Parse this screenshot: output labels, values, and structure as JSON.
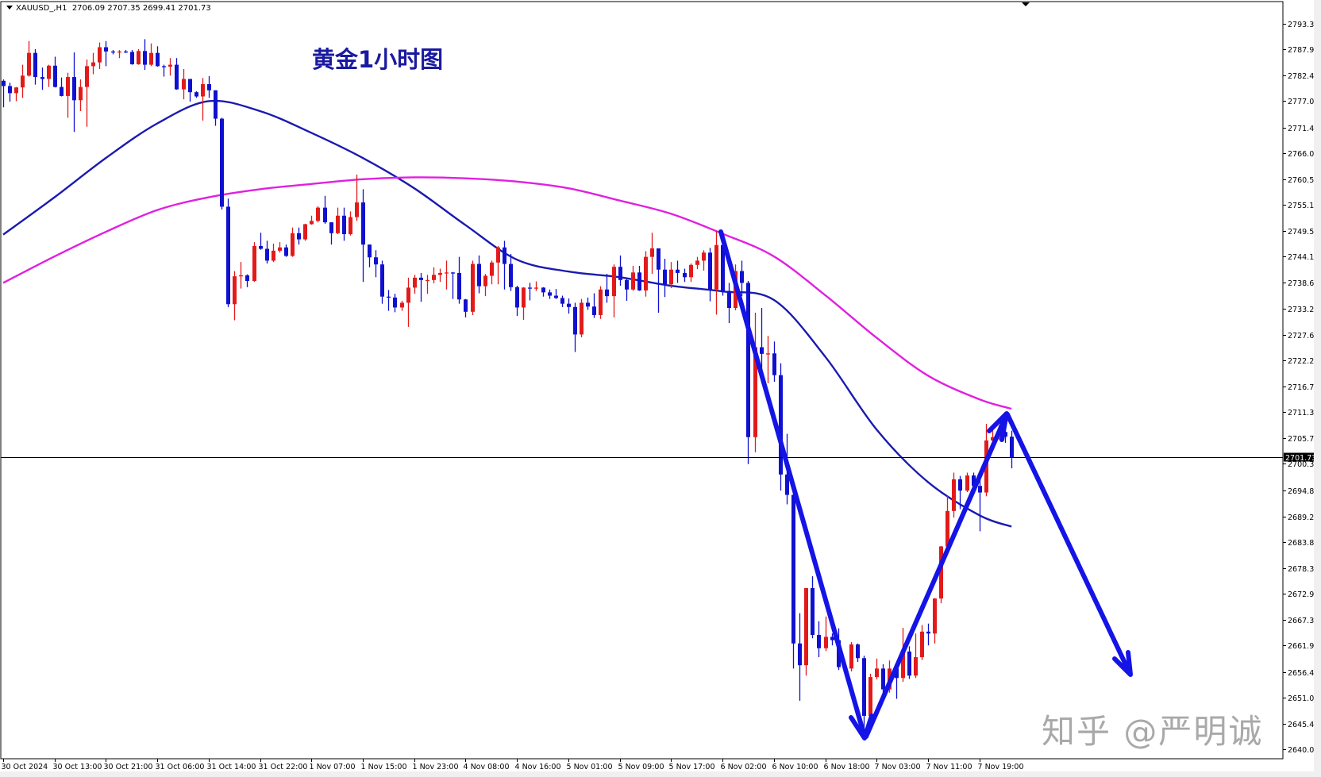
{
  "header": {
    "symbol": "XAUUSD_,H1",
    "ohlc_text": "2706.09 2707.35 2699.41 2701.73"
  },
  "title": "黄金1小时图",
  "watermark": "知乎 @严明诚",
  "colors": {
    "bull_candle": "#e31a1a",
    "bear_candle": "#1010d0",
    "ma_fast": "#1a1ab0",
    "ma_slow": "#e020e0",
    "annotation_arrows": "#1414e6",
    "current_price_line": "#000000"
  },
  "price_axis": {
    "ticks": [
      "2793.35",
      "2787.95",
      "2782.40",
      "2777.00",
      "2771.45",
      "2766.05",
      "2760.50",
      "2755.10",
      "2749.55",
      "2744.15",
      "2738.60",
      "2733.20",
      "2727.65",
      "2722.25",
      "2716.70",
      "2711.30",
      "2705.75",
      "2700.35",
      "2694.80",
      "2689.25",
      "2683.85",
      "2678.30",
      "2672.90",
      "2667.35",
      "2661.95",
      "2656.40",
      "2651.00",
      "2645.45",
      "2640.05"
    ],
    "current_price": "2701.73"
  },
  "time_axis": {
    "labels": [
      "30 Oct 2024",
      "30 Oct 13:00",
      "30 Oct 21:00",
      "31 Oct 06:00",
      "31 Oct 14:00",
      "31 Oct 22:00",
      "1 Nov 07:00",
      "1 Nov 15:00",
      "1 Nov 23:00",
      "4 Nov 08:00",
      "4 Nov 16:00",
      "5 Nov 01:00",
      "5 Nov 09:00",
      "5 Nov 17:00",
      "6 Nov 02:00",
      "6 Nov 10:00",
      "6 Nov 18:00",
      "7 Nov 03:00",
      "7 Nov 11:00",
      "7 Nov 19:00"
    ],
    "bars_per_label": 8
  },
  "chart_data": {
    "type": "candlestick",
    "timeframe": "H1",
    "ylim": [
      2640.05,
      2793.35
    ],
    "grid": false,
    "candles_ohlc": [
      [
        2781.3,
        2781.6,
        2775.7,
        2780.2
      ],
      [
        2780.2,
        2780.9,
        2776.9,
        2778.7
      ],
      [
        2778.7,
        2780.0,
        2777.0,
        2779.9
      ],
      [
        2779.9,
        2784.7,
        2777.7,
        2782.4
      ],
      [
        2782.4,
        2789.7,
        2782.2,
        2787.2
      ],
      [
        2787.2,
        2788.0,
        2780.5,
        2782.1
      ],
      [
        2782.1,
        2784.1,
        2779.4,
        2781.7
      ],
      [
        2781.7,
        2784.7,
        2780.0,
        2784.5
      ],
      [
        2784.5,
        2786.4,
        2779.9,
        2780.0
      ],
      [
        2780.0,
        2782.0,
        2778.0,
        2778.1
      ],
      [
        2778.1,
        2783.0,
        2773.5,
        2782.1
      ],
      [
        2782.1,
        2787.3,
        2770.5,
        2777.2
      ],
      [
        2777.2,
        2781.6,
        2774.9,
        2780.0
      ],
      [
        2780.0,
        2785.8,
        2771.6,
        2784.4
      ],
      [
        2784.4,
        2787.2,
        2782.7,
        2785.2
      ],
      [
        2785.2,
        2789.4,
        2783.8,
        2788.4
      ],
      [
        2788.4,
        2789.7,
        2784.4,
        2787.5
      ],
      [
        2787.5,
        2787.8,
        2786.9,
        2787.3
      ],
      [
        2787.3,
        2787.8,
        2786.1,
        2787.5
      ],
      [
        2787.5,
        2787.8,
        2787.2,
        2787.4
      ],
      [
        2787.4,
        2787.8,
        2784.7,
        2784.8
      ],
      [
        2784.8,
        2788.0,
        2784.7,
        2787.6
      ],
      [
        2787.6,
        2790.1,
        2783.6,
        2784.7
      ],
      [
        2784.7,
        2789.2,
        2784.4,
        2787.2
      ],
      [
        2787.2,
        2788.6,
        2784.3,
        2784.4
      ],
      [
        2784.4,
        2784.7,
        2782.2,
        2784.3
      ],
      [
        2784.3,
        2786.1,
        2782.4,
        2784.7
      ],
      [
        2784.7,
        2786.1,
        2779.4,
        2779.5
      ],
      [
        2779.5,
        2783.8,
        2777.4,
        2781.7
      ],
      [
        2781.7,
        2781.7,
        2776.9,
        2778.9
      ],
      [
        2778.9,
        2779.1,
        2777.7,
        2778.0
      ],
      [
        2778.0,
        2781.9,
        2772.9,
        2780.6
      ],
      [
        2780.6,
        2782.3,
        2777.7,
        2779.3
      ],
      [
        2779.3,
        2779.3,
        2771.8,
        2773.3
      ],
      [
        2773.3,
        2773.5,
        2754.1,
        2754.7
      ],
      [
        2754.7,
        2756.4,
        2733.5,
        2734.1
      ],
      [
        2734.1,
        2741.1,
        2730.7,
        2740.0
      ],
      [
        2740.0,
        2743.0,
        2737.4,
        2740.2
      ],
      [
        2740.2,
        2740.4,
        2737.7,
        2739.0
      ],
      [
        2739.0,
        2747.2,
        2738.8,
        2746.4
      ],
      [
        2746.4,
        2749.2,
        2745.6,
        2745.8
      ],
      [
        2745.8,
        2747.5,
        2742.7,
        2743.3
      ],
      [
        2743.3,
        2746.9,
        2743.0,
        2745.4
      ],
      [
        2745.4,
        2747.2,
        2745.0,
        2746.1
      ],
      [
        2746.1,
        2746.7,
        2744.1,
        2744.3
      ],
      [
        2744.3,
        2750.3,
        2744.1,
        2749.1
      ],
      [
        2749.1,
        2750.3,
        2746.7,
        2747.8
      ],
      [
        2747.8,
        2751.1,
        2747.5,
        2751.0
      ],
      [
        2751.0,
        2752.8,
        2750.9,
        2751.7
      ],
      [
        2751.7,
        2754.8,
        2751.4,
        2754.5
      ],
      [
        2754.5,
        2757.0,
        2751.1,
        2751.4
      ],
      [
        2751.4,
        2751.4,
        2746.7,
        2749.1
      ],
      [
        2749.1,
        2754.5,
        2748.9,
        2752.8
      ],
      [
        2752.8,
        2754.5,
        2747.5,
        2748.9
      ],
      [
        2748.9,
        2753.7,
        2748.6,
        2752.5
      ],
      [
        2752.5,
        2761.5,
        2751.7,
        2755.6
      ],
      [
        2755.6,
        2758.4,
        2738.8,
        2746.7
      ],
      [
        2746.7,
        2746.7,
        2741.9,
        2744.0
      ],
      [
        2744.0,
        2745.5,
        2739.8,
        2742.5
      ],
      [
        2742.5,
        2743.3,
        2734.2,
        2735.7
      ],
      [
        2735.7,
        2737.1,
        2732.7,
        2735.5
      ],
      [
        2735.5,
        2736.3,
        2732.4,
        2733.4
      ],
      [
        2733.4,
        2734.8,
        2732.7,
        2734.4
      ],
      [
        2734.4,
        2739.7,
        2729.3,
        2737.6
      ],
      [
        2737.6,
        2740.3,
        2736.3,
        2739.7
      ],
      [
        2739.7,
        2740.7,
        2734.6,
        2739.2
      ],
      [
        2739.2,
        2740.3,
        2736.3,
        2739.2
      ],
      [
        2739.2,
        2741.9,
        2738.5,
        2740.3
      ],
      [
        2740.3,
        2741.6,
        2738.8,
        2740.7
      ],
      [
        2740.7,
        2743.3,
        2737.2,
        2740.8
      ],
      [
        2740.8,
        2740.9,
        2735.2,
        2740.7
      ],
      [
        2740.7,
        2744.1,
        2734.2,
        2735.1
      ],
      [
        2735.1,
        2735.2,
        2731.3,
        2732.5
      ],
      [
        2732.5,
        2743.3,
        2731.8,
        2742.6
      ],
      [
        2742.6,
        2744.4,
        2736.4,
        2737.9
      ],
      [
        2737.9,
        2740.5,
        2735.8,
        2740.1
      ],
      [
        2740.1,
        2743.3,
        2738.3,
        2742.9
      ],
      [
        2742.9,
        2746.4,
        2738.3,
        2746.1
      ],
      [
        2746.1,
        2747.5,
        2737.2,
        2742.6
      ],
      [
        2742.6,
        2744.7,
        2736.9,
        2737.7
      ],
      [
        2737.7,
        2738.0,
        2731.6,
        2733.4
      ],
      [
        2733.4,
        2737.7,
        2730.8,
        2737.6
      ],
      [
        2737.6,
        2738.6,
        2734.9,
        2737.4
      ],
      [
        2737.4,
        2738.9,
        2736.9,
        2737.6
      ],
      [
        2737.6,
        2737.7,
        2735.7,
        2736.6
      ],
      [
        2736.6,
        2737.2,
        2735.2,
        2735.9
      ],
      [
        2735.9,
        2737.3,
        2735.2,
        2735.4
      ],
      [
        2735.4,
        2735.9,
        2733.5,
        2734.2
      ],
      [
        2734.2,
        2735.3,
        2732.1,
        2733.5
      ],
      [
        2733.5,
        2734.4,
        2724.0,
        2727.7
      ],
      [
        2727.7,
        2735.2,
        2727.1,
        2734.4
      ],
      [
        2734.4,
        2735.5,
        2732.9,
        2733.6
      ],
      [
        2733.6,
        2736.4,
        2731.2,
        2731.8
      ],
      [
        2731.8,
        2737.9,
        2731.0,
        2737.2
      ],
      [
        2737.2,
        2740.5,
        2734.4,
        2735.8
      ],
      [
        2735.8,
        2742.5,
        2731.3,
        2742.0
      ],
      [
        2742.0,
        2744.4,
        2738.0,
        2739.2
      ],
      [
        2739.2,
        2739.4,
        2734.8,
        2737.2
      ],
      [
        2737.2,
        2742.2,
        2736.9,
        2740.8
      ],
      [
        2740.8,
        2742.2,
        2736.9,
        2737.0
      ],
      [
        2737.0,
        2745.3,
        2735.7,
        2744.1
      ],
      [
        2744.1,
        2749.2,
        2740.5,
        2745.9
      ],
      [
        2745.9,
        2745.9,
        2732.3,
        2741.4
      ],
      [
        2741.4,
        2743.7,
        2735.6,
        2738.3
      ],
      [
        2738.3,
        2743.0,
        2737.5,
        2741.4
      ],
      [
        2741.4,
        2743.3,
        2738.6,
        2740.7
      ],
      [
        2740.7,
        2741.6,
        2738.8,
        2739.8
      ],
      [
        2739.8,
        2742.7,
        2738.8,
        2742.4
      ],
      [
        2742.4,
        2744.1,
        2741.5,
        2743.3
      ],
      [
        2743.3,
        2745.5,
        2741.2,
        2745.0
      ],
      [
        2745.0,
        2746.0,
        2734.7,
        2737.2
      ],
      [
        2737.2,
        2749.6,
        2731.9,
        2746.6
      ],
      [
        2746.6,
        2747.0,
        2735.9,
        2736.9
      ],
      [
        2736.9,
        2738.6,
        2730.1,
        2733.3
      ],
      [
        2733.3,
        2742.5,
        2732.8,
        2741.1
      ],
      [
        2741.1,
        2743.3,
        2735.8,
        2738.6
      ],
      [
        2738.6,
        2739.0,
        2700.3,
        2706.0
      ],
      [
        2706.0,
        2732.3,
        2702.8,
        2725.0
      ],
      [
        2725.0,
        2733.3,
        2717.4,
        2723.6
      ],
      [
        2723.6,
        2727.4,
        2717.4,
        2723.7
      ],
      [
        2723.7,
        2726.2,
        2717.7,
        2719.1
      ],
      [
        2719.1,
        2721.6,
        2694.7,
        2698.1
      ],
      [
        2698.1,
        2706.7,
        2691.8,
        2693.8
      ],
      [
        2693.8,
        2694.6,
        2657.1,
        2662.4
      ],
      [
        2662.4,
        2668.8,
        2650.3,
        2657.8
      ],
      [
        2657.8,
        2674.1,
        2655.6,
        2674.1
      ],
      [
        2674.1,
        2676.6,
        2663.5,
        2664.2
      ],
      [
        2664.2,
        2667.1,
        2659.5,
        2661.4
      ],
      [
        2661.4,
        2668.1,
        2660.8,
        2663.8
      ],
      [
        2663.8,
        2664.5,
        2662.0,
        2663.1
      ],
      [
        2663.1,
        2665.6,
        2656.8,
        2657.4
      ],
      [
        2657.4,
        2658.0,
        2655.9,
        2657.1
      ],
      [
        2657.1,
        2662.7,
        2656.5,
        2662.2
      ],
      [
        2662.2,
        2662.4,
        2658.5,
        2659.3
      ],
      [
        2659.3,
        2659.8,
        2643.6,
        2647.1
      ],
      [
        2647.1,
        2656.0,
        2646.5,
        2655.3
      ],
      [
        2655.3,
        2659.2,
        2654.8,
        2657.1
      ],
      [
        2657.1,
        2658.0,
        2651.9,
        2652.7
      ],
      [
        2652.7,
        2658.8,
        2652.0,
        2657.1
      ],
      [
        2657.1,
        2657.8,
        2650.7,
        2655.1
      ],
      [
        2655.1,
        2665.7,
        2654.3,
        2660.7
      ],
      [
        2660.7,
        2661.8,
        2654.9,
        2655.6
      ],
      [
        2655.6,
        2664.5,
        2655.1,
        2659.5
      ],
      [
        2659.5,
        2666.3,
        2658.9,
        2664.9
      ],
      [
        2664.9,
        2666.6,
        2662.0,
        2664.5
      ],
      [
        2664.5,
        2672.0,
        2662.4,
        2671.9
      ],
      [
        2671.9,
        2683.0,
        2670.9,
        2682.9
      ],
      [
        2682.9,
        2693.6,
        2682.4,
        2690.4
      ],
      [
        2690.4,
        2698.5,
        2689.0,
        2697.1
      ],
      [
        2697.1,
        2697.8,
        2690.8,
        2694.7
      ],
      [
        2694.7,
        2698.5,
        2694.4,
        2697.9
      ],
      [
        2697.9,
        2698.5,
        2693.9,
        2695.7
      ],
      [
        2695.7,
        2697.5,
        2686.1,
        2694.3
      ],
      [
        2694.3,
        2708.8,
        2693.5,
        2705.3
      ],
      [
        2705.3,
        2707.4,
        2704.5,
        2706.0
      ],
      [
        2706.0,
        2708.5,
        2705.5,
        2707.1
      ],
      [
        2707.1,
        2709.6,
        2704.8,
        2706.09
      ],
      [
        2706.09,
        2707.35,
        2699.41,
        2701.73
      ]
    ],
    "moving_averages": [
      {
        "color": "#1a1ab0",
        "values_at_time_labels": [
          2748.8,
          2756.7,
          2765.0,
          2772.3,
          2777.0,
          2774.9,
          2770.3,
          2765.0,
          2758.6,
          2750.8,
          2743.5,
          2741.0,
          2739.8,
          2738.0,
          2736.8,
          2735.0,
          2723.0,
          2707.6,
          2696.5,
          2689.5
        ],
        "value_at_last_candle": 2687.1
      },
      {
        "color": "#e020e0",
        "values_at_time_labels": [
          2738.6,
          2744.2,
          2749.4,
          2754.0,
          2756.7,
          2758.4,
          2759.5,
          2760.5,
          2760.9,
          2760.7,
          2760.0,
          2758.6,
          2756.0,
          2753.2,
          2749.0,
          2744.2,
          2736.0,
          2727.0,
          2719.0,
          2714.0
        ],
        "value_at_last_candle": 2712.0
      }
    ],
    "current_price_line": 2701.73
  }
}
